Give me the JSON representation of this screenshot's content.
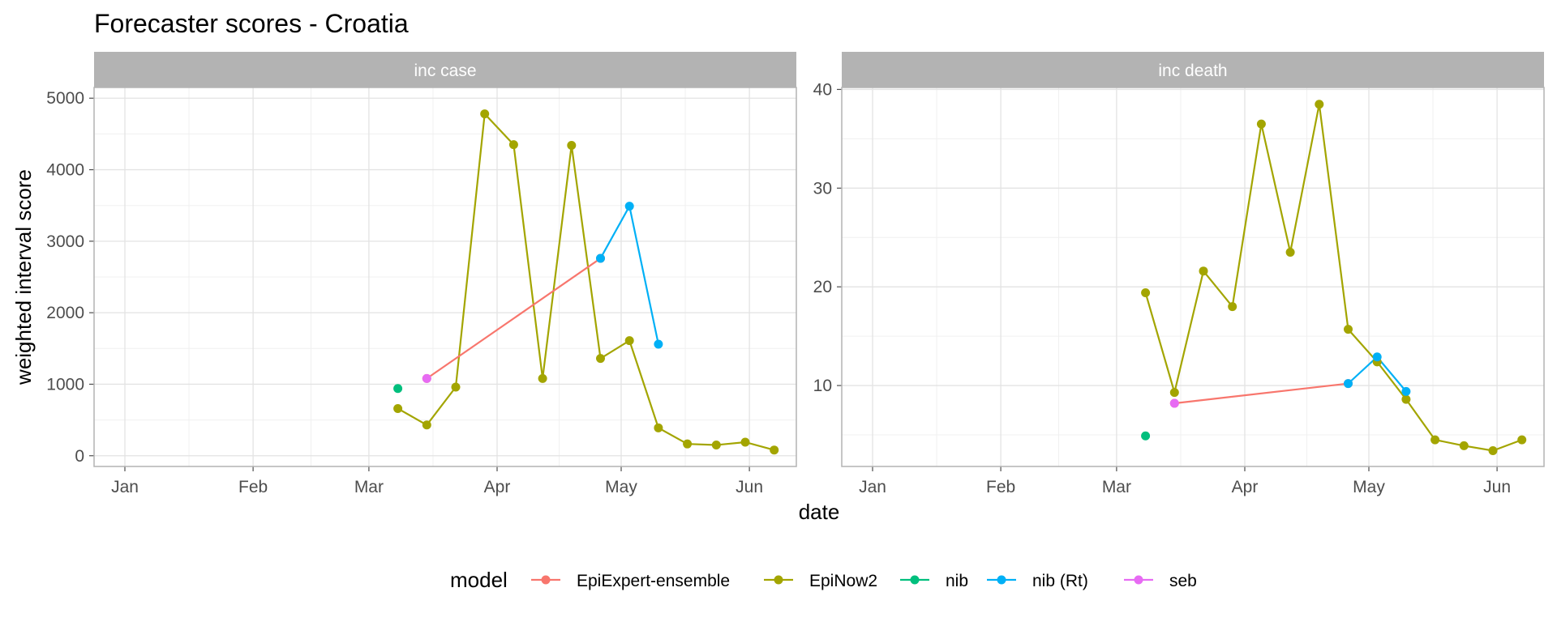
{
  "chart_data": {
    "type": "line",
    "title": "Forecaster scores - Croatia",
    "xlabel": "date",
    "ylabel": "weighted interval score",
    "x_ticks": [
      "Jan",
      "Feb",
      "Mar",
      "Apr",
      "May",
      "Jun"
    ],
    "legend": {
      "title": "model",
      "position": "bottom",
      "entries": [
        {
          "name": "EpiExpert-ensemble",
          "color": "#F8766D"
        },
        {
          "name": "EpiNow2",
          "color": "#A3A500"
        },
        {
          "name": "nib",
          "color": "#00BF7D"
        },
        {
          "name": "nib (Rt)",
          "color": "#00B0F6"
        },
        {
          "name": "seb",
          "color": "#E76BF3"
        }
      ]
    },
    "grid": true,
    "panels": [
      {
        "strip": "inc case",
        "ylim": [
          -150,
          5150
        ],
        "y_ticks": [
          0,
          1000,
          2000,
          3000,
          4000,
          5000
        ],
        "series": [
          {
            "name": "EpiNow2",
            "color": "#A3A500",
            "points": [
              [
                "2021-03-08",
                660
              ],
              [
                "2021-03-15",
                430
              ],
              [
                "2021-03-22",
                960
              ],
              [
                "2021-03-29",
                4780
              ],
              [
                "2021-04-05",
                4350
              ],
              [
                "2021-04-12",
                1080
              ],
              [
                "2021-04-19",
                4340
              ],
              [
                "2021-04-26",
                1360
              ],
              [
                "2021-05-03",
                1610
              ],
              [
                "2021-05-10",
                390
              ],
              [
                "2021-05-17",
                165
              ],
              [
                "2021-05-24",
                150
              ],
              [
                "2021-05-31",
                190
              ],
              [
                "2021-06-07",
                80
              ]
            ]
          },
          {
            "name": "EpiExpert-ensemble",
            "color": "#F8766D",
            "points": [
              [
                "2021-03-15",
                1080
              ],
              [
                "2021-04-26",
                2760
              ]
            ]
          },
          {
            "name": "nib (Rt)",
            "color": "#00B0F6",
            "points": [
              [
                "2021-04-26",
                2760
              ],
              [
                "2021-05-03",
                3490
              ],
              [
                "2021-05-10",
                1560
              ]
            ]
          },
          {
            "name": "nib",
            "color": "#00BF7D",
            "points": [
              [
                "2021-03-08",
                940
              ]
            ]
          },
          {
            "name": "seb",
            "color": "#E76BF3",
            "points": [
              [
                "2021-03-15",
                1080
              ]
            ]
          }
        ]
      },
      {
        "strip": "inc death",
        "ylim": [
          1.8,
          40.2
        ],
        "y_ticks": [
          10,
          20,
          30,
          40
        ],
        "series": [
          {
            "name": "EpiNow2",
            "color": "#A3A500",
            "points": [
              [
                "2021-03-08",
                19.4
              ],
              [
                "2021-03-15",
                9.3
              ],
              [
                "2021-03-22",
                21.6
              ],
              [
                "2021-03-29",
                18.0
              ],
              [
                "2021-04-05",
                36.5
              ],
              [
                "2021-04-12",
                23.5
              ],
              [
                "2021-04-19",
                38.5
              ],
              [
                "2021-04-26",
                15.7
              ],
              [
                "2021-05-03",
                12.4
              ],
              [
                "2021-05-10",
                8.6
              ],
              [
                "2021-05-17",
                4.5
              ],
              [
                "2021-05-24",
                3.9
              ],
              [
                "2021-05-31",
                3.4
              ],
              [
                "2021-06-07",
                4.5
              ]
            ]
          },
          {
            "name": "EpiExpert-ensemble",
            "color": "#F8766D",
            "points": [
              [
                "2021-03-15",
                8.2
              ],
              [
                "2021-04-26",
                10.2
              ]
            ]
          },
          {
            "name": "nib (Rt)",
            "color": "#00B0F6",
            "points": [
              [
                "2021-04-26",
                10.2
              ],
              [
                "2021-05-03",
                12.9
              ],
              [
                "2021-05-10",
                9.4
              ]
            ]
          },
          {
            "name": "nib",
            "color": "#00BF7D",
            "points": [
              [
                "2021-03-08",
                4.9
              ]
            ]
          },
          {
            "name": "seb",
            "color": "#E76BF3",
            "points": [
              [
                "2021-03-15",
                8.2
              ]
            ]
          }
        ]
      }
    ]
  }
}
